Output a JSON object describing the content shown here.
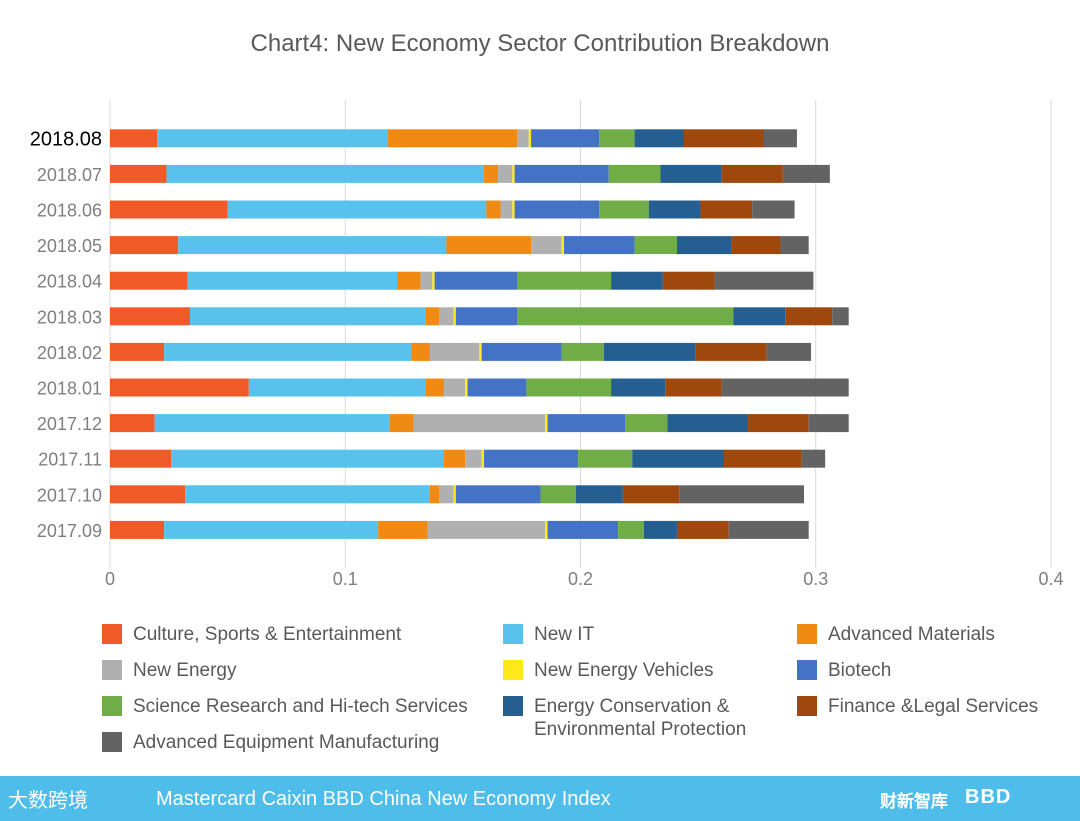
{
  "chart_data": {
    "type": "bar",
    "orientation": "horizontal",
    "stacked": true,
    "title": "Chart4: New Economy Sector Contribution Breakdown",
    "xlabel": "",
    "ylabel": "",
    "xlim": [
      0,
      0.4
    ],
    "xticks": [
      "0",
      "0.1",
      "0.2",
      "0.3",
      "0.4"
    ],
    "grid": true,
    "legend_position": "bottom",
    "categories": [
      "2018.08",
      "2018.07",
      "2018.06",
      "2018.05",
      "2018.04",
      "2018.03",
      "2018.02",
      "2018.01",
      "2017.12",
      "2017.11",
      "2017.10",
      "2017.09"
    ],
    "highlighted_category": "2018.08",
    "series": [
      {
        "name": "Culture, Sports & Entertainment",
        "color": "#f05a28",
        "values": [
          0.02,
          0.024,
          0.05,
          0.029,
          0.033,
          0.034,
          0.023,
          0.059,
          0.019,
          0.026,
          0.032,
          0.023
        ]
      },
      {
        "name": "New IT",
        "color": "#58c2ec",
        "values": [
          0.098,
          0.135,
          0.11,
          0.114,
          0.089,
          0.1,
          0.105,
          0.075,
          0.1,
          0.116,
          0.104,
          0.091
        ]
      },
      {
        "name": "Advanced Materials",
        "color": "#f08a12",
        "values": [
          0.055,
          0.006,
          0.006,
          0.036,
          0.01,
          0.006,
          0.008,
          0.008,
          0.01,
          0.009,
          0.004,
          0.021
        ]
      },
      {
        "name": "New Energy",
        "color": "#b0b0b0",
        "values": [
          0.005,
          0.006,
          0.005,
          0.013,
          0.005,
          0.006,
          0.021,
          0.009,
          0.056,
          0.007,
          0.006,
          0.05
        ]
      },
      {
        "name": "New Energy Vehicles",
        "color": "#ffe81a",
        "values": [
          0.001,
          0.001,
          0.001,
          0.001,
          0.001,
          0.001,
          0.001,
          0.001,
          0.001,
          0.001,
          0.001,
          0.001
        ]
      },
      {
        "name": "Biotech",
        "color": "#4472c4",
        "values": [
          0.029,
          0.04,
          0.036,
          0.03,
          0.035,
          0.026,
          0.034,
          0.025,
          0.033,
          0.04,
          0.036,
          0.03
        ]
      },
      {
        "name": "Science Research and Hi-tech Services",
        "color": "#70ad47",
        "values": [
          0.015,
          0.022,
          0.021,
          0.018,
          0.04,
          0.092,
          0.018,
          0.036,
          0.018,
          0.023,
          0.015,
          0.011
        ]
      },
      {
        "name": "Energy Conservation & Environmental Protection",
        "color": "#255e91",
        "values": [
          0.021,
          0.026,
          0.022,
          0.023,
          0.022,
          0.022,
          0.039,
          0.023,
          0.034,
          0.039,
          0.02,
          0.014
        ]
      },
      {
        "name": "Finance &Legal Services",
        "color": "#9e480e",
        "values": [
          0.034,
          0.026,
          0.022,
          0.021,
          0.022,
          0.02,
          0.03,
          0.024,
          0.026,
          0.033,
          0.024,
          0.022
        ]
      },
      {
        "name": "Advanced Equipment Manufacturing",
        "color": "#636363",
        "values": [
          0.014,
          0.02,
          0.018,
          0.012,
          0.042,
          0.007,
          0.019,
          0.054,
          0.017,
          0.01,
          0.053,
          0.034
        ]
      }
    ]
  },
  "footer": {
    "logo_text": "大数跨境",
    "text": "Mastercard Caixin BBD China New Economy Index",
    "brand_cn": "财新智库",
    "brand_bbd": "BBD"
  }
}
